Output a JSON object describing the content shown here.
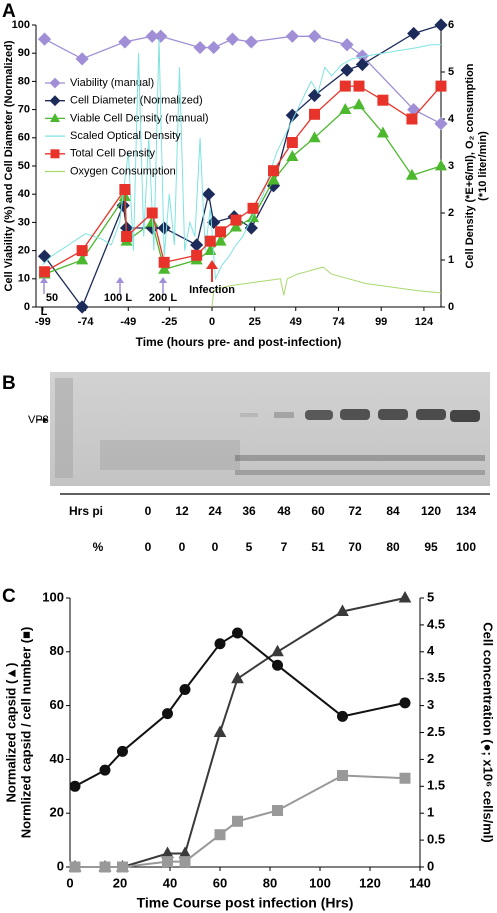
{
  "chart_data": [
    {
      "type": "line",
      "panel": "A",
      "xlabel": "Time (hours pre- and post-infection)",
      "ylabel": "Cell Viability (%) and Cell Diameter (Normalized)",
      "y2label": [
        "Cell Density (*E+6/ml), O₂ consumption",
        "(*10 liter/min)"
      ],
      "xlim": [
        -103,
        134
      ],
      "xticks": [
        -99,
        -74,
        -49,
        -25,
        0,
        25,
        49,
        74,
        99,
        124
      ],
      "ylim": [
        0,
        100
      ],
      "yticks": [
        0,
        10,
        20,
        30,
        40,
        50,
        60,
        70,
        80,
        90,
        100
      ],
      "y2lim": [
        0,
        6
      ],
      "y2ticks": [
        0,
        1,
        2,
        3,
        4,
        5,
        6
      ],
      "annotations": [
        "50",
        "L",
        "100 L",
        "200 L",
        "Infection"
      ],
      "series": [
        {
          "name": "Viability (manual)",
          "color": "#a08fd6",
          "marker": "diamond",
          "x": [
            -98,
            -76,
            -51,
            -35,
            -30,
            -7,
            1,
            12,
            23,
            47,
            60,
            79,
            88,
            118,
            134
          ],
          "values": [
            95,
            88,
            94,
            96,
            96,
            92,
            92,
            95,
            94,
            96,
            96,
            93,
            89,
            70,
            65
          ]
        },
        {
          "name": "Cell Diameter (Normalized)",
          "color": "#1c2b5a",
          "marker": "diamond",
          "x": [
            -98,
            -76,
            -52,
            -50,
            -35,
            -28,
            -9,
            -2,
            1,
            13,
            23,
            36,
            47,
            60,
            79,
            88,
            118,
            134
          ],
          "values": [
            18,
            0,
            36,
            28,
            28,
            28,
            22,
            40,
            30,
            32,
            28,
            43,
            68,
            75,
            84,
            86,
            97,
            100
          ]
        },
        {
          "name": "Viable Cell Density (manual)",
          "color": "#4cb82e",
          "marker": "triangle",
          "axis": "y2",
          "x": [
            -98,
            -76,
            -51,
            -50,
            -35,
            -28,
            -9,
            -1,
            5,
            14,
            24,
            36,
            47,
            60,
            78,
            86,
            100,
            117,
            134
          ],
          "values": [
            0.7,
            1.0,
            2.35,
            1.4,
            1.8,
            0.8,
            1.0,
            1.2,
            1.4,
            1.7,
            1.9,
            2.7,
            3.2,
            3.6,
            4.2,
            4.3,
            3.7,
            2.8,
            3.0
          ]
        },
        {
          "name": "Scaled Optical Density",
          "color": "#7fe3e0",
          "marker": "none",
          "x": [
            -99,
            -94,
            -89,
            -84,
            -79,
            -74,
            -69,
            -64,
            -59,
            -54,
            -49,
            -46,
            -43,
            -40,
            -37,
            -34,
            -31,
            -28,
            -25,
            -22,
            -19,
            -16,
            -13,
            -10,
            -7,
            -4,
            -1,
            2,
            6,
            10,
            14,
            18,
            22,
            26,
            30,
            34,
            38,
            42,
            46,
            50,
            54,
            58,
            62,
            66,
            70,
            76,
            82,
            90,
            100,
            110,
            120,
            128,
            134
          ],
          "values": [
            15,
            18,
            20,
            22,
            24,
            26,
            25,
            24,
            22,
            30,
            55,
            20,
            90,
            25,
            60,
            20,
            95,
            18,
            40,
            22,
            85,
            20,
            30,
            25,
            60,
            20,
            35,
            10,
            15,
            18,
            22,
            25,
            30,
            35,
            40,
            48,
            55,
            60,
            65,
            70,
            75,
            80,
            76,
            85,
            82,
            86,
            88,
            89,
            90,
            91,
            92,
            93,
            93
          ]
        },
        {
          "name": "Total Cell Density",
          "color": "#e8332a",
          "marker": "square",
          "axis": "y2",
          "x": [
            -98,
            -76,
            -51,
            -50,
            -35,
            -28,
            -9,
            -1,
            5,
            14,
            24,
            36,
            47,
            60,
            78,
            86,
            100,
            117,
            134
          ],
          "values": [
            0.75,
            1.2,
            2.5,
            1.5,
            2.0,
            0.95,
            1.1,
            1.4,
            1.6,
            1.85,
            2.1,
            2.9,
            3.5,
            4.1,
            4.7,
            4.7,
            4.4,
            4.0,
            4.7
          ]
        },
        {
          "name": "Oxygen Consumption",
          "color": "#a9d86e",
          "marker": "none",
          "axis": "y2",
          "x": [
            0,
            1,
            5,
            10,
            20,
            30,
            40,
            42,
            44,
            50,
            55,
            60,
            65,
            70,
            80,
            90,
            100,
            110,
            120,
            134
          ],
          "values": [
            0,
            0.35,
            0.4,
            0.45,
            0.5,
            0.55,
            0.6,
            0.25,
            0.6,
            0.7,
            0.75,
            0.8,
            0.85,
            0.7,
            0.6,
            0.5,
            0.45,
            0.4,
            0.35,
            0.3
          ]
        }
      ]
    },
    {
      "type": "line",
      "panel": "C",
      "xlabel": "Time Course post infection (Hrs)",
      "ylabel": [
        "Normalized capsid (▲)",
        "Normlized capsid / cell number (■)"
      ],
      "y2label": "Cell concentration (●; x10⁶ cells/ml)",
      "xlim": [
        0,
        140
      ],
      "xticks": [
        0,
        20,
        40,
        60,
        80,
        100,
        120,
        140
      ],
      "ylim": [
        0,
        100
      ],
      "yticks": [
        0,
        20,
        40,
        60,
        80,
        100
      ],
      "y2lim": [
        0,
        5
      ],
      "y2ticks": [
        0,
        0.5,
        1,
        1.5,
        2,
        2.5,
        3,
        3.5,
        4,
        4.5,
        5
      ],
      "x": [
        2,
        14,
        21,
        39,
        46,
        60,
        67,
        83,
        109,
        134
      ],
      "series": [
        {
          "color": "#3a3a3a",
          "marker": "triangle",
          "values": [
            0,
            0,
            0,
            5,
            5,
            50,
            70,
            80,
            95,
            100
          ]
        },
        {
          "color": "#999999",
          "marker": "square",
          "values": [
            0,
            0,
            0,
            2,
            2,
            12,
            17,
            21,
            34,
            33
          ]
        },
        {
          "color": "#111111",
          "marker": "circle",
          "axis": "y2",
          "values": [
            1.5,
            1.8,
            2.15,
            2.85,
            3.3,
            4.15,
            4.35,
            3.75,
            2.8,
            3.05
          ]
        }
      ]
    }
  ],
  "panel_b": {
    "label": "B",
    "marker": "VP3",
    "table": {
      "rows": [
        [
          "Hrs pi",
          0,
          12,
          24,
          36,
          48,
          60,
          72,
          84,
          120,
          134
        ],
        [
          "%",
          0,
          0,
          0,
          5,
          7,
          51,
          70,
          80,
          95,
          100
        ]
      ]
    }
  }
}
